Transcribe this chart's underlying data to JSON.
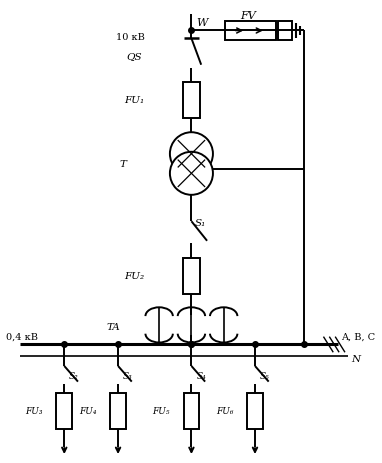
{
  "bg_color": "#ffffff",
  "line_color": "#000000",
  "lw": 1.4,
  "fig_width": 3.82,
  "fig_height": 4.64,
  "labels": {
    "W": "W",
    "FV": "FV",
    "10kB": "10 кB",
    "QS": "QS",
    "FU1": "FU₁",
    "T": "T",
    "S1": "S₁",
    "FU2": "FU₂",
    "TA": "TA",
    "04kB": "0,4 кB",
    "ABC": "A, B, C",
    "N": "N",
    "S2": "S₂",
    "S3": "S₃",
    "S4": "S₄",
    "S5": "S₅",
    "FU3": "FU₃",
    "FU4": "FU₄",
    "FU5": "FU₅",
    "FU6": "FU₆"
  }
}
